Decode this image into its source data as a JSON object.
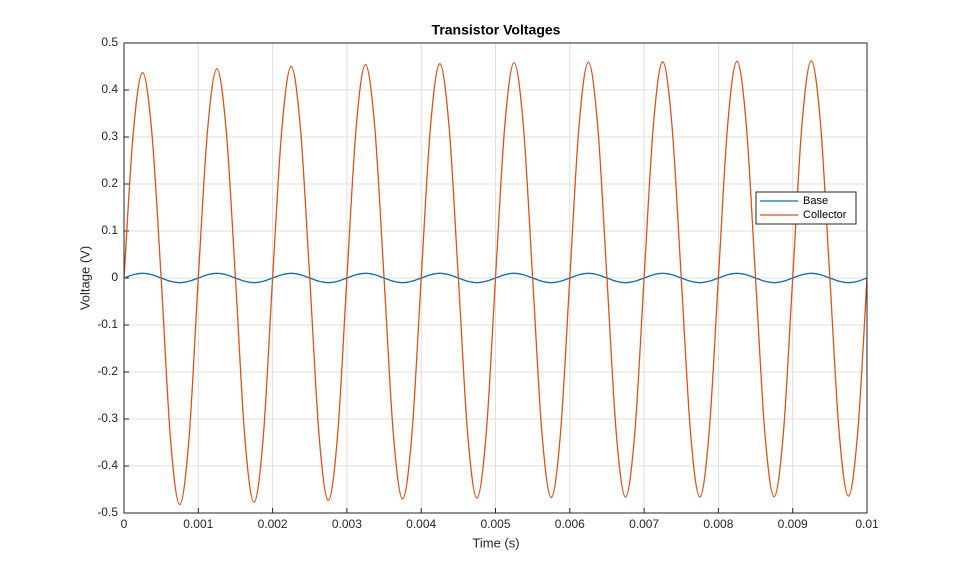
{
  "chart_data": {
    "type": "line",
    "title": "Transistor Voltages",
    "xlabel": "Time (s)",
    "ylabel": "Voltage (V)",
    "x": [
      0,
      0.000125,
      0.00025,
      0.000375,
      0.0005,
      0.000625,
      0.00075,
      0.000875,
      0.001,
      0.001125,
      0.00125,
      0.001375,
      0.0015,
      0.001625,
      0.00175,
      0.001875,
      0.002,
      0.002125,
      0.00225,
      0.002375,
      0.0025,
      0.002625,
      0.00275,
      0.002875,
      0.003,
      0.003125,
      0.00325,
      0.003375,
      0.0035,
      0.003625,
      0.00375,
      0.003875,
      0.004,
      0.004125,
      0.00425,
      0.004375,
      0.0045,
      0.004625,
      0.00475,
      0.004875,
      0.005,
      0.005125,
      0.00525,
      0.005375,
      0.0055,
      0.005625,
      0.00575,
      0.005875,
      0.006,
      0.006125,
      0.00625,
      0.006375,
      0.0065,
      0.006625,
      0.00675,
      0.006875,
      0.007,
      0.007125,
      0.00725,
      0.007375,
      0.0075,
      0.007625,
      0.00775,
      0.007875,
      0.008,
      0.008125,
      0.00825,
      0.008375,
      0.0085,
      0.008625,
      0.00875,
      0.008875,
      0.009,
      0.009125,
      0.00925,
      0.009375,
      0.0095,
      0.009625,
      0.00975,
      0.009875,
      0.01
    ],
    "series": [
      {
        "name": "Base",
        "color": "#0072bd",
        "values": [
          0,
          0.007,
          0.01,
          0.007,
          0,
          -0.007,
          -0.01,
          -0.007,
          0,
          0.007,
          0.01,
          0.007,
          0,
          -0.007,
          -0.01,
          -0.007,
          0,
          0.007,
          0.01,
          0.007,
          0,
          -0.007,
          -0.01,
          -0.007,
          0,
          0.007,
          0.01,
          0.007,
          0,
          -0.007,
          -0.01,
          -0.007,
          0,
          0.007,
          0.01,
          0.007,
          0,
          -0.007,
          -0.01,
          -0.007,
          0,
          0.007,
          0.01,
          0.007,
          0,
          -0.007,
          -0.01,
          -0.007,
          0,
          0.007,
          0.01,
          0.007,
          0,
          -0.007,
          -0.01,
          -0.007,
          0,
          0.007,
          0.01,
          0.007,
          0,
          -0.007,
          -0.01,
          -0.007,
          0,
          0.007,
          0.01,
          0.007,
          0,
          -0.007,
          -0.01,
          -0.007,
          0,
          0.007,
          0.01,
          0.007,
          0,
          -0.007,
          -0.01,
          -0.007,
          0
        ]
      },
      {
        "name": "Collector",
        "color": "#d95319",
        "values": [
          0,
          0.309,
          0.437,
          0.309,
          0,
          -0.341,
          -0.482,
          -0.341,
          0,
          0.315,
          0.445,
          0.315,
          0,
          -0.337,
          -0.477,
          -0.337,
          0,
          0.318,
          0.45,
          0.318,
          0,
          -0.334,
          -0.473,
          -0.334,
          0,
          0.321,
          0.454,
          0.321,
          0,
          -0.332,
          -0.47,
          -0.332,
          0,
          0.322,
          0.456,
          0.322,
          0,
          -0.331,
          -0.468,
          -0.331,
          0,
          0.324,
          0.458,
          0.324,
          0,
          -0.33,
          -0.467,
          -0.33,
          0,
          0.325,
          0.459,
          0.325,
          0,
          -0.329,
          -0.466,
          -0.329,
          0,
          0.325,
          0.46,
          0.325,
          0,
          -0.329,
          -0.466,
          -0.329,
          0,
          0.326,
          0.461,
          0.326,
          0,
          -0.329,
          -0.465,
          -0.329,
          0,
          0.327,
          0.462,
          0.327,
          0,
          -0.328,
          -0.464,
          -0.328,
          0
        ]
      }
    ],
    "xlim": [
      0,
      0.01
    ],
    "xticks": [
      0,
      0.001,
      0.002,
      0.003,
      0.004,
      0.005,
      0.006,
      0.007,
      0.008,
      0.009,
      0.01
    ],
    "ylim": [
      -0.5,
      0.5
    ],
    "yticks": [
      -0.5,
      -0.4,
      -0.3,
      -0.2,
      -0.1,
      0,
      0.1,
      0.2,
      0.3,
      0.4,
      0.5
    ],
    "grid": true,
    "legend": "east"
  }
}
